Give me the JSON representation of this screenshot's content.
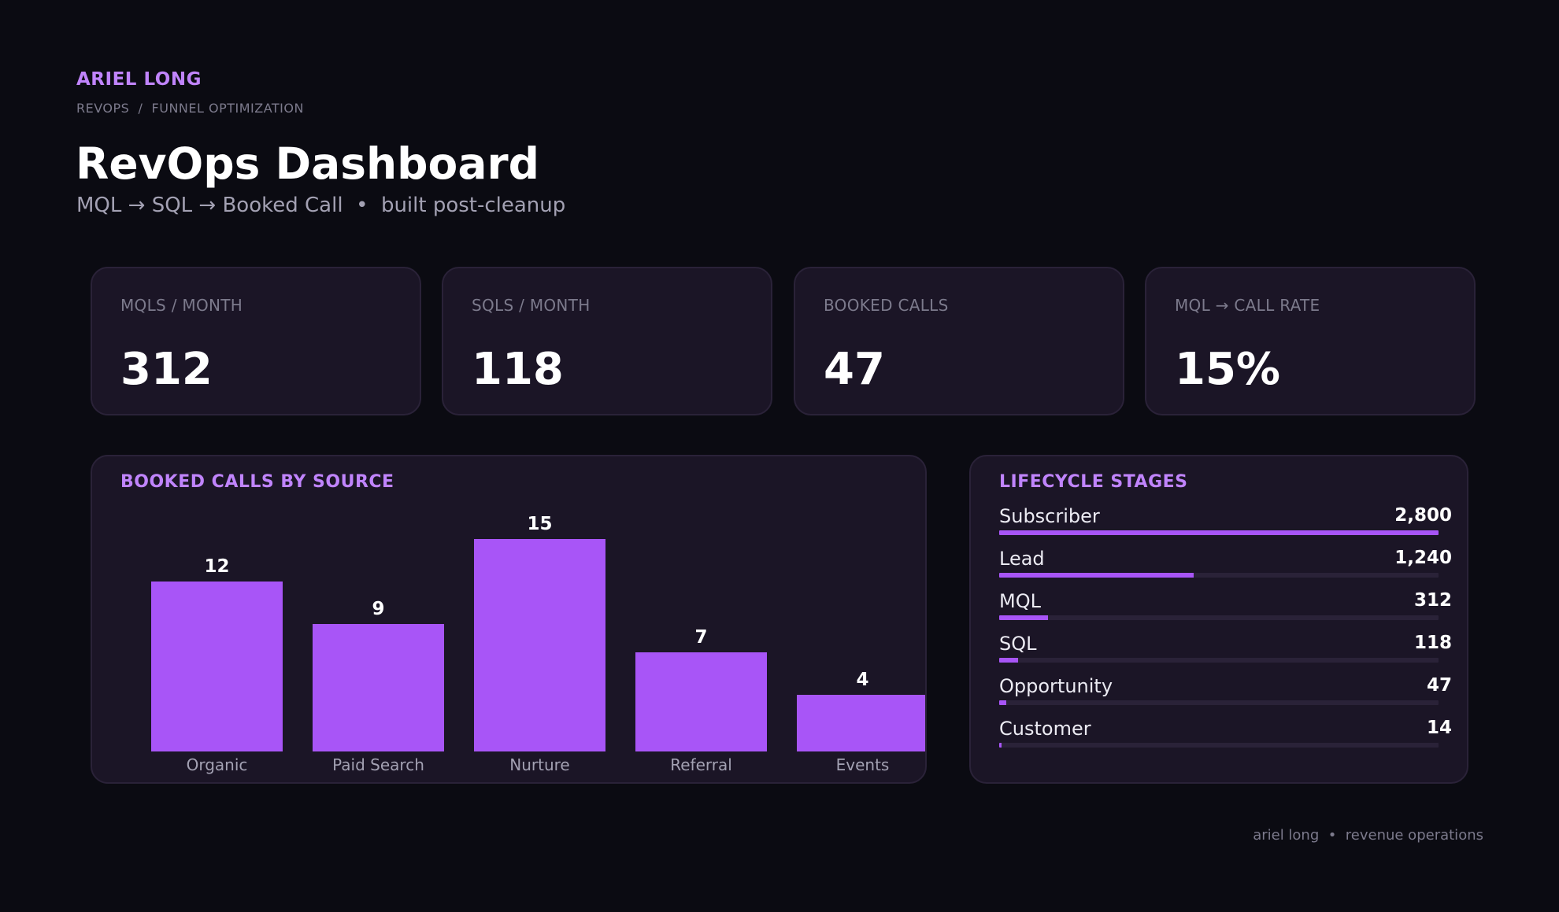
{
  "header": {
    "brand": "ARIEL LONG",
    "breadcrumb": "REVOPS  /  FUNNEL OPTIMIZATION",
    "title": "RevOps Dashboard",
    "subtitle": "MQL → SQL → Booked Call  •  built post-cleanup"
  },
  "kpis": [
    {
      "label": "MQLS / MONTH",
      "value": "312"
    },
    {
      "label": "SQLS / MONTH",
      "value": "118"
    },
    {
      "label": "BOOKED CALLS",
      "value": "47"
    },
    {
      "label": "MQL → CALL RATE",
      "value": "15%"
    }
  ],
  "chart_data": [
    {
      "type": "bar",
      "title": "BOOKED CALLS BY SOURCE",
      "categories": [
        "Organic",
        "Paid Search",
        "Nurture",
        "Referral",
        "Events"
      ],
      "values": [
        12,
        9,
        15,
        7,
        4
      ],
      "data_labels": true,
      "grid": false,
      "color": "#a855f7"
    },
    {
      "type": "bar",
      "orientation": "horizontal",
      "title": "LIFECYCLE STAGES",
      "categories": [
        "Subscriber",
        "Lead",
        "MQL",
        "SQL",
        "Opportunity",
        "Customer"
      ],
      "values": [
        2800,
        1240,
        312,
        118,
        47,
        14
      ],
      "value_labels": [
        "2,800",
        "1,240",
        "312",
        "118",
        "47",
        "14"
      ],
      "xlim": [
        0,
        2800
      ],
      "color": "#a855f7"
    }
  ],
  "footer": "ariel long  •  revenue operations",
  "colors": {
    "accent": "#c084fc",
    "bar": "#a855f7",
    "background": "#0b0b12",
    "card": "#1b1526"
  }
}
